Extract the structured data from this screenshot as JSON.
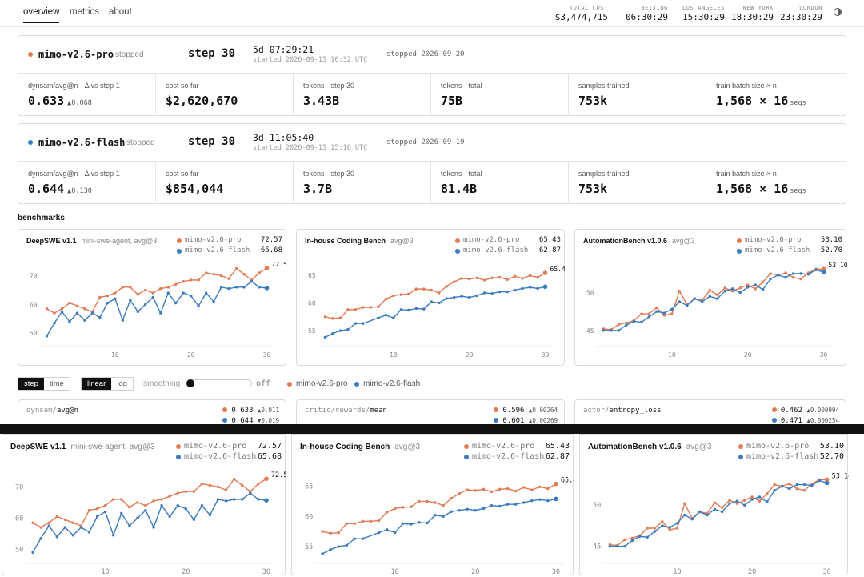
{
  "nav": {
    "tabs": [
      "overview",
      "metrics",
      "about"
    ]
  },
  "header": {
    "total_cost_label": "TOTAL COST",
    "total_cost": "$3,474,715",
    "clocks": [
      {
        "city": "BEIJING",
        "time": "06:30:29"
      },
      {
        "city": "LOS ANGELES",
        "time": "15:30:29"
      },
      {
        "city": "NEW YORK",
        "time": "18:30:29"
      },
      {
        "city": "LONDON",
        "time": "23:30:29"
      }
    ],
    "theme_icon": "half-circle-icon"
  },
  "colors": {
    "pro": "#e07b53",
    "flash": "#3a7bbf"
  },
  "runs": [
    {
      "name": "mimo-v2.6-pro",
      "status": "stopped",
      "step": "step 30",
      "duration": "5d 07:29:21",
      "started": "started 2026-09-15 10:32 UTC",
      "stopped": "stopped 2026-09-20",
      "metrics": [
        {
          "label": "dynsam/avg@n · Δ vs step 1",
          "value": "0.633",
          "delta": "▲0.068"
        },
        {
          "label": "cost so far",
          "value": "$2,620,670"
        },
        {
          "label": "tokens · step 30",
          "value": "3.43B"
        },
        {
          "label": "tokens · total",
          "value": "75B"
        },
        {
          "label": "samples trained",
          "value": "753k"
        },
        {
          "label": "train batch size × n",
          "value": "1,568 × 16",
          "unit": "seqs"
        }
      ]
    },
    {
      "name": "mimo-v2.6-flash",
      "status": "stopped",
      "step": "step 30",
      "duration": "3d 11:05:40",
      "started": "started 2026-09-15 15:16 UTC",
      "stopped": "stopped 2026-09-19",
      "metrics": [
        {
          "label": "dynsam/avg@n · Δ vs step 1",
          "value": "0.644",
          "delta": "▲0.130"
        },
        {
          "label": "cost so far",
          "value": "$854,044"
        },
        {
          "label": "tokens · step 30",
          "value": "3.7B"
        },
        {
          "label": "tokens · total",
          "value": "81.4B"
        },
        {
          "label": "samples trained",
          "value": "753k"
        },
        {
          "label": "train batch size × n",
          "value": "1,568 × 16",
          "unit": "seqs"
        }
      ]
    }
  ],
  "benchmarks_label": "benchmarks",
  "controls": {
    "x_modes": [
      "step",
      "time"
    ],
    "y_modes": [
      "linear",
      "log"
    ],
    "smoothing_label": "smoothing",
    "smoothing_value": "off",
    "legend": [
      "mimo-v2.6-pro",
      "mimo-v2.6-flash"
    ]
  },
  "mini_charts": [
    {
      "prefix": "dynsam/",
      "name": "avg@n",
      "pro": "0.633",
      "pro_d": "▲0.011",
      "flash": "0.644",
      "flash_d": "▼0.019"
    },
    {
      "prefix": "critic/rewards/",
      "name": "mean",
      "pro": "0.596",
      "pro_d": "▲0.00264",
      "flash": "0.601",
      "flash_d": "▲0.00269"
    },
    {
      "prefix": "actor/",
      "name": "entropy_loss",
      "pro": "0.462",
      "pro_d": "▲0.000994",
      "flash": "0.471",
      "flash_d": "▲0.000254"
    }
  ],
  "chart_data": [
    {
      "type": "line",
      "title": "DeepSWE v1.1",
      "subtitle": "mini-swe-agent, avg@3",
      "xticks": [
        10,
        20,
        30
      ],
      "yticks": [
        50,
        60,
        70
      ],
      "xlim": [
        0,
        31
      ],
      "ylim": [
        47,
        76
      ],
      "series": [
        {
          "name": "mimo-v2.6-pro",
          "final": "72.57",
          "x": [
            1,
            2,
            3,
            4,
            5,
            6,
            7,
            8,
            9,
            10,
            11,
            12,
            13,
            14,
            15,
            16,
            17,
            18,
            19,
            20,
            21,
            22,
            23,
            24,
            25,
            26,
            27,
            28,
            29,
            30
          ],
          "values": [
            58.5,
            57,
            58.5,
            60.5,
            59.5,
            58.5,
            57.5,
            62.5,
            63,
            64,
            66,
            66,
            63.5,
            65,
            64,
            65.5,
            66,
            67,
            68,
            68.5,
            68.5,
            71,
            70.5,
            70,
            69,
            72.5,
            70.5,
            68.5,
            71,
            72.6
          ]
        },
        {
          "name": "mimo-v2.6-flash",
          "final": "65.68",
          "x": [
            1,
            2,
            3,
            4,
            5,
            6,
            7,
            8,
            9,
            10,
            11,
            12,
            13,
            14,
            15,
            16,
            17,
            18,
            19,
            20,
            21,
            22,
            23,
            24,
            25,
            26,
            27,
            28,
            29,
            30
          ],
          "values": [
            49,
            53.5,
            57.5,
            54,
            57,
            54.5,
            57,
            55.5,
            60.5,
            62,
            54.5,
            61.5,
            57.5,
            60,
            62.5,
            57,
            64,
            60.5,
            64,
            63,
            59.5,
            64,
            61,
            66,
            65.5,
            66,
            66,
            68,
            66,
            65.7
          ]
        }
      ]
    },
    {
      "type": "line",
      "title": "In-house Coding Bench",
      "subtitle": "avg@3",
      "xticks": [
        10,
        20,
        30
      ],
      "yticks": [
        55,
        60,
        65
      ],
      "xlim": [
        0,
        31
      ],
      "ylim": [
        53,
        68
      ],
      "series": [
        {
          "name": "mimo-v2.6-pro",
          "final": "65.43",
          "x": [
            1,
            2,
            3,
            4,
            5,
            6,
            7,
            8,
            9,
            10,
            11,
            12,
            13,
            14,
            15,
            16,
            17,
            18,
            19,
            20,
            21,
            22,
            23,
            24,
            25,
            26,
            27,
            28,
            29,
            30
          ],
          "values": [
            57.5,
            57.2,
            57.3,
            58.8,
            58.8,
            59.2,
            59.2,
            59.3,
            60.7,
            61.3,
            61.5,
            61.6,
            62.5,
            62.5,
            62.3,
            61.8,
            63,
            63.8,
            64.4,
            64.3,
            64.5,
            64.1,
            64.5,
            64.6,
            64.2,
            64.8,
            64.4,
            64.9,
            64.6,
            65.4
          ]
        },
        {
          "name": "mimo-v2.6-flash",
          "final": "62.87",
          "x": [
            1,
            2,
            3,
            4,
            5,
            6,
            7,
            8,
            9,
            10,
            11,
            12,
            13,
            14,
            15,
            16,
            17,
            18,
            19,
            20,
            21,
            22,
            23,
            24,
            25,
            26,
            27,
            28,
            29,
            30
          ],
          "values": [
            53.8,
            54.5,
            55,
            55.2,
            56.3,
            56.3,
            null,
            57.3,
            57.8,
            57.3,
            58.8,
            58.7,
            59,
            58.9,
            60.2,
            60,
            60.8,
            61,
            61.2,
            61,
            61.3,
            61.8,
            61.7,
            62,
            62,
            62.3,
            62.6,
            62.8,
            62.6,
            62.9
          ]
        }
      ]
    },
    {
      "type": "line",
      "title": "AutomationBench v1.0.6",
      "subtitle": "avg@3",
      "xticks": [
        10,
        20,
        30
      ],
      "yticks": [
        45,
        50
      ],
      "xlim": [
        0,
        31
      ],
      "ylim": [
        43.5,
        54.5
      ],
      "series": [
        {
          "name": "mimo-v2.6-pro",
          "final": "53.10",
          "x": [
            1,
            2,
            3,
            4,
            5,
            6,
            7,
            8,
            9,
            10,
            11,
            12,
            13,
            14,
            15,
            16,
            17,
            18,
            19,
            20,
            21,
            22,
            23,
            24,
            25,
            26,
            27,
            28,
            29,
            30
          ],
          "values": [
            45.2,
            45.1,
            45.8,
            46,
            46.3,
            47.2,
            47.2,
            48,
            47,
            47.2,
            50.2,
            48.4,
            49.2,
            49,
            50.3,
            49.7,
            50.6,
            50.2,
            50.6,
            51,
            50.5,
            51.4,
            52.5,
            52.3,
            52.6,
            52,
            51.8,
            52.6,
            53.1,
            53.1
          ]
        },
        {
          "name": "mimo-v2.6-flash",
          "final": "52.70",
          "x": [
            1,
            2,
            3,
            4,
            5,
            6,
            7,
            8,
            9,
            10,
            11,
            12,
            13,
            14,
            15,
            16,
            17,
            18,
            19,
            20,
            21,
            22,
            23,
            24,
            25,
            26,
            27,
            28,
            29,
            30
          ],
          "values": [
            45,
            45,
            45,
            45.7,
            46.2,
            46.1,
            46.8,
            47.5,
            47.3,
            47.8,
            48.8,
            48.3,
            49.2,
            48.8,
            49.5,
            49.2,
            50.2,
            50.5,
            50,
            50.7,
            51,
            50.4,
            51.8,
            52.3,
            52,
            52.5,
            52.5,
            52.4,
            53,
            52.7
          ]
        }
      ]
    }
  ]
}
